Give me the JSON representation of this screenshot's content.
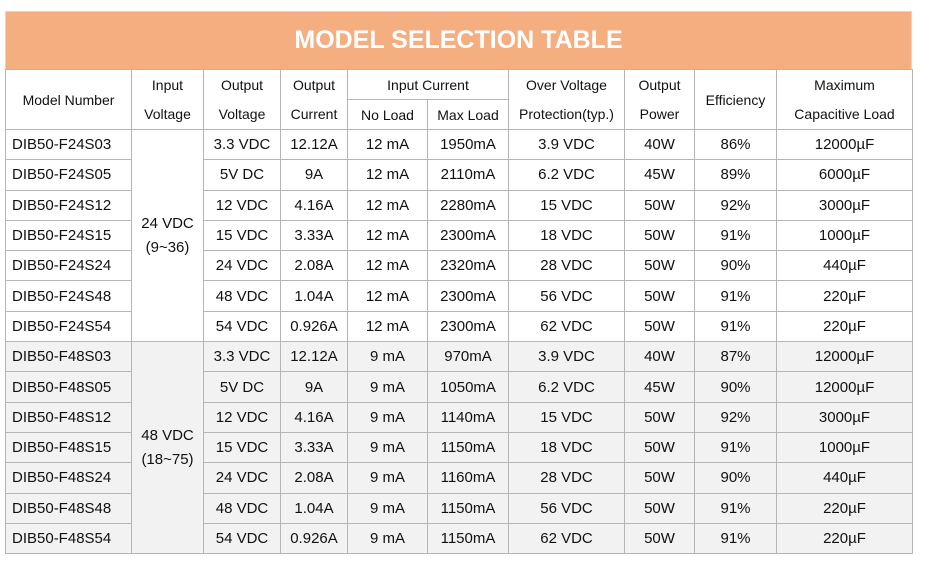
{
  "title": "MODEL SELECTION TABLE",
  "headers": {
    "model": "Model Number",
    "input_voltage": [
      "Input",
      "Voltage"
    ],
    "output_voltage": [
      "Output",
      "Voltage"
    ],
    "output_current": [
      "Output",
      "Current"
    ],
    "input_current": "Input Current",
    "no_load": "No Load",
    "max_load": "Max Load",
    "ovp": [
      "Over Voltage",
      "Protection(typ.)"
    ],
    "output_power": [
      "Output",
      "Power"
    ],
    "efficiency": "Efficiency",
    "max_cap": [
      "Maximum",
      "Capacitive Load"
    ]
  },
  "groups": [
    {
      "input_voltage": "24 VDC",
      "input_range": "(9~36)",
      "rows": [
        {
          "model": "DIB50-F24S03",
          "vout": "3.3 VDC",
          "iout": "12.12A",
          "no_load": "12 mA",
          "max_load": "1950mA",
          "ovp": "3.9 VDC",
          "power": "40W",
          "eff": "86%",
          "cap": "12000µF"
        },
        {
          "model": "DIB50-F24S05",
          "vout": "5V DC",
          "iout": "9A",
          "no_load": "12 mA",
          "max_load": "2110mA",
          "ovp": "6.2 VDC",
          "power": "45W",
          "eff": "89%",
          "cap": "6000µF"
        },
        {
          "model": "DIB50-F24S12",
          "vout": "12 VDC",
          "iout": "4.16A",
          "no_load": "12 mA",
          "max_load": "2280mA",
          "ovp": "15 VDC",
          "power": "50W",
          "eff": "92%",
          "cap": "3000µF"
        },
        {
          "model": "DIB50-F24S15",
          "vout": "15 VDC",
          "iout": "3.33A",
          "no_load": "12 mA",
          "max_load": "2300mA",
          "ovp": "18 VDC",
          "power": "50W",
          "eff": "91%",
          "cap": "1000µF"
        },
        {
          "model": "DIB50-F24S24",
          "vout": "24 VDC",
          "iout": "2.08A",
          "no_load": "12 mA",
          "max_load": "2320mA",
          "ovp": "28 VDC",
          "power": "50W",
          "eff": "90%",
          "cap": "440µF"
        },
        {
          "model": "DIB50-F24S48",
          "vout": "48 VDC",
          "iout": "1.04A",
          "no_load": "12 mA",
          "max_load": "2300mA",
          "ovp": "56 VDC",
          "power": "50W",
          "eff": "91%",
          "cap": "220µF"
        },
        {
          "model": "DIB50-F24S54",
          "vout": "54 VDC",
          "iout": "0.926A",
          "no_load": "12 mA",
          "max_load": "2300mA",
          "ovp": "62 VDC",
          "power": "50W",
          "eff": "91%",
          "cap": "220µF"
        }
      ]
    },
    {
      "input_voltage": "48 VDC",
      "input_range": "(18~75)",
      "rows": [
        {
          "model": "DIB50-F48S03",
          "vout": "3.3 VDC",
          "iout": "12.12A",
          "no_load": "9 mA",
          "max_load": "970mA",
          "ovp": "3.9 VDC",
          "power": "40W",
          "eff": "87%",
          "cap": "12000µF"
        },
        {
          "model": "DIB50-F48S05",
          "vout": "5V DC",
          "iout": "9A",
          "no_load": "9 mA",
          "max_load": "1050mA",
          "ovp": "6.2 VDC",
          "power": "45W",
          "eff": "90%",
          "cap": "12000µF"
        },
        {
          "model": "DIB50-F48S12",
          "vout": "12 VDC",
          "iout": "4.16A",
          "no_load": "9 mA",
          "max_load": "1140mA",
          "ovp": "15 VDC",
          "power": "50W",
          "eff": "92%",
          "cap": "3000µF"
        },
        {
          "model": "DIB50-F48S15",
          "vout": "15 VDC",
          "iout": "3.33A",
          "no_load": "9 mA",
          "max_load": "1150mA",
          "ovp": "18 VDC",
          "power": "50W",
          "eff": "91%",
          "cap": "1000µF"
        },
        {
          "model": "DIB50-F48S24",
          "vout": "24 VDC",
          "iout": "2.08A",
          "no_load": "9 mA",
          "max_load": "1160mA",
          "ovp": "28 VDC",
          "power": "50W",
          "eff": "90%",
          "cap": "440µF"
        },
        {
          "model": "DIB50-F48S48",
          "vout": "48 VDC",
          "iout": "1.04A",
          "no_load": "9 mA",
          "max_load": "1150mA",
          "ovp": "56 VDC",
          "power": "50W",
          "eff": "91%",
          "cap": "220µF"
        },
        {
          "model": "DIB50-F48S54",
          "vout": "54 VDC",
          "iout": "0.926A",
          "no_load": "9 mA",
          "max_load": "1150mA",
          "ovp": "62 VDC",
          "power": "50W",
          "eff": "91%",
          "cap": "220µF"
        }
      ]
    }
  ]
}
